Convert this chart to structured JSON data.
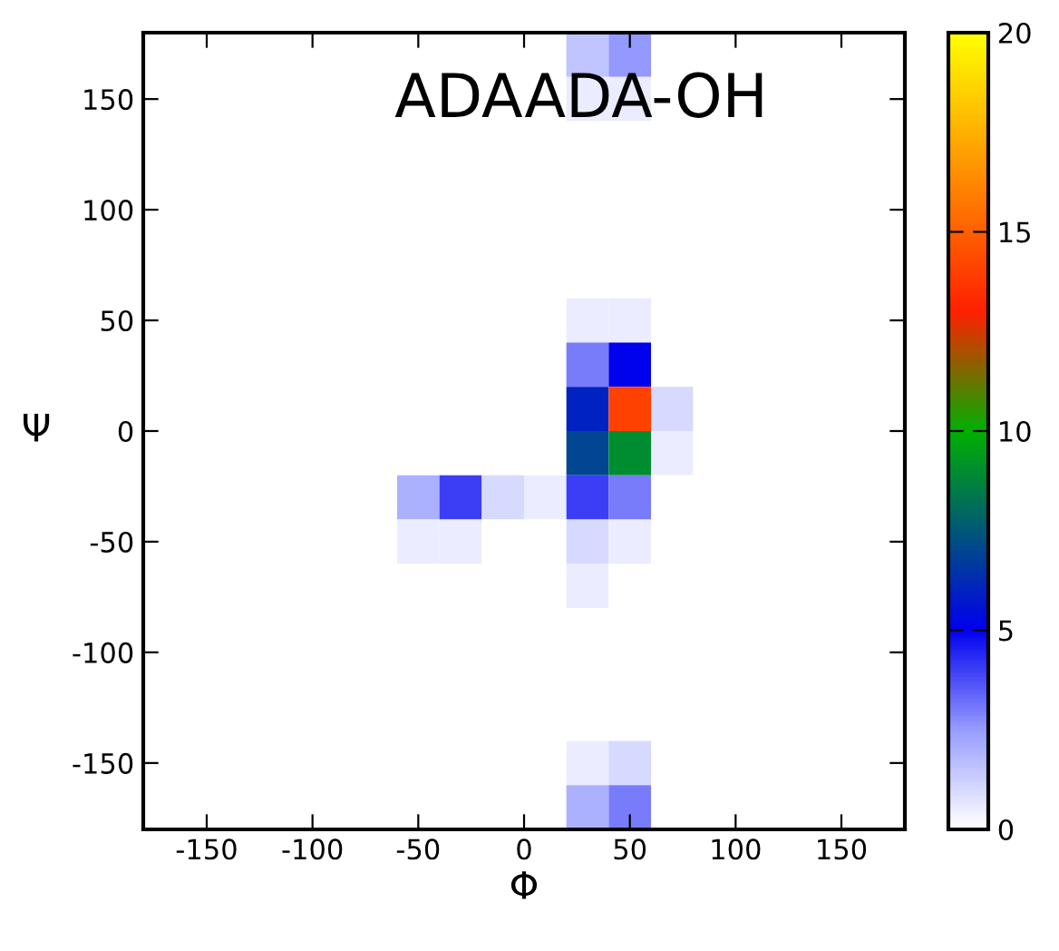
{
  "chart_data": {
    "type": "heatmap",
    "title": "ADAADA-OH",
    "xlabel": "Φ",
    "ylabel": "Ψ",
    "xlim": [
      -180,
      180
    ],
    "ylim": [
      -180,
      180
    ],
    "xticks": [
      -150,
      -100,
      -50,
      0,
      50,
      100,
      150
    ],
    "yticks": [
      -150,
      -100,
      -50,
      0,
      50,
      100,
      150
    ],
    "clim": [
      0,
      20
    ],
    "cticks": [
      0,
      5,
      10,
      15,
      20
    ],
    "grid": false,
    "cells": [
      [
        0,
        0,
        0,
        0,
        0,
        0,
        0,
        0,
        0,
        0,
        1.5,
        2.5,
        0,
        0,
        0,
        0,
        0,
        0
      ],
      [
        0,
        0,
        0,
        0,
        0,
        0,
        0,
        0,
        0,
        0,
        0.5,
        0.5,
        0,
        0,
        0,
        0,
        0,
        0
      ],
      [
        0,
        0,
        0,
        0,
        0,
        0,
        0,
        0,
        0,
        0,
        0,
        0,
        0,
        0,
        0,
        0,
        0,
        0
      ],
      [
        0,
        0,
        0,
        0,
        0,
        0,
        0,
        0,
        0,
        0,
        0,
        0,
        0,
        0,
        0,
        0,
        0,
        0
      ],
      [
        0,
        0,
        0,
        0,
        0,
        0,
        0,
        0,
        0,
        0,
        0,
        0,
        0,
        0,
        0,
        0,
        0,
        0
      ],
      [
        0,
        0,
        0,
        0,
        0,
        0,
        0,
        0,
        0,
        0,
        0,
        0,
        0,
        0,
        0,
        0,
        0,
        0
      ],
      [
        0,
        0,
        0,
        0,
        0,
        0,
        0,
        0,
        0,
        0,
        0.5,
        0.5,
        0,
        0,
        0,
        0,
        0,
        0
      ],
      [
        0,
        0,
        0,
        0,
        0,
        0,
        0,
        0,
        0,
        0,
        3,
        5,
        0,
        0,
        0,
        0,
        0,
        0
      ],
      [
        0,
        0,
        0,
        0,
        0,
        0,
        0,
        0,
        0,
        0,
        6,
        14,
        1,
        0,
        0,
        0,
        0,
        0
      ],
      [
        0,
        0,
        0,
        0,
        0,
        0,
        0,
        0,
        0,
        0,
        7,
        9,
        0.5,
        0,
        0,
        0,
        0,
        0
      ],
      [
        0,
        0,
        0,
        0,
        0,
        0,
        2,
        4,
        1,
        0.5,
        4,
        3,
        0,
        0,
        0,
        0,
        0,
        0
      ],
      [
        0,
        0,
        0,
        0,
        0,
        0,
        0.5,
        0.5,
        0,
        0,
        1,
        0.5,
        0,
        0,
        0,
        0,
        0,
        0
      ],
      [
        0,
        0,
        0,
        0,
        0,
        0,
        0,
        0,
        0,
        0,
        0.5,
        0,
        0,
        0,
        0,
        0,
        0,
        0
      ],
      [
        0,
        0,
        0,
        0,
        0,
        0,
        0,
        0,
        0,
        0,
        0,
        0,
        0,
        0,
        0,
        0,
        0,
        0
      ],
      [
        0,
        0,
        0,
        0,
        0,
        0,
        0,
        0,
        0,
        0,
        0,
        0,
        0,
        0,
        0,
        0,
        0,
        0
      ],
      [
        0,
        0,
        0,
        0,
        0,
        0,
        0,
        0,
        0,
        0,
        0,
        0,
        0,
        0,
        0,
        0,
        0,
        0
      ],
      [
        0,
        0,
        0,
        0,
        0,
        0,
        0,
        0,
        0,
        0,
        0.5,
        1,
        0,
        0,
        0,
        0,
        0,
        0
      ],
      [
        0,
        0,
        0,
        0,
        0,
        0,
        0,
        0,
        0,
        0,
        2,
        3,
        0,
        0,
        0,
        0,
        0,
        0
      ]
    ]
  }
}
